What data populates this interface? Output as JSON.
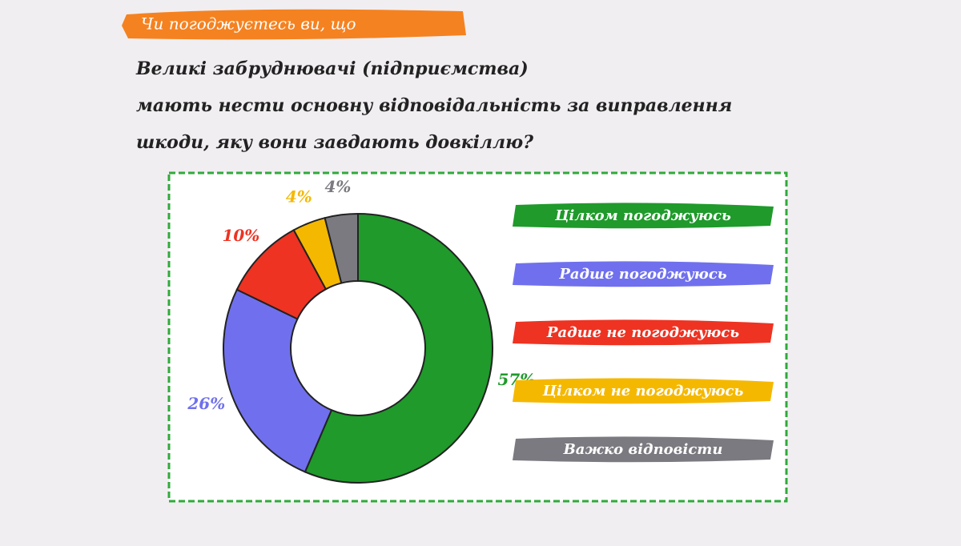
{
  "chart_data": {
    "type": "pie",
    "header": "Чи погоджуєтесь ви, що",
    "question": [
      "Великі забруднювачі (підприємства)",
      "мають нести основну відповідальність за виправлення",
      "шкоди, яку вони завдають довкіллю?"
    ],
    "categories": [
      "Цілком погоджуюсь",
      "Радше погоджуюсь",
      "Радше не погоджуюсь",
      "Цілком не погоджуюсь",
      "Важко відповісти"
    ],
    "values": [
      57,
      26,
      10,
      4,
      4
    ],
    "value_labels": [
      "57%",
      "26%",
      "10%",
      "4%",
      "4%"
    ],
    "colors": [
      "#1f9a2b",
      "#7070ee",
      "#ee3322",
      "#f5b800",
      "#7a7a80"
    ],
    "donut": true
  }
}
